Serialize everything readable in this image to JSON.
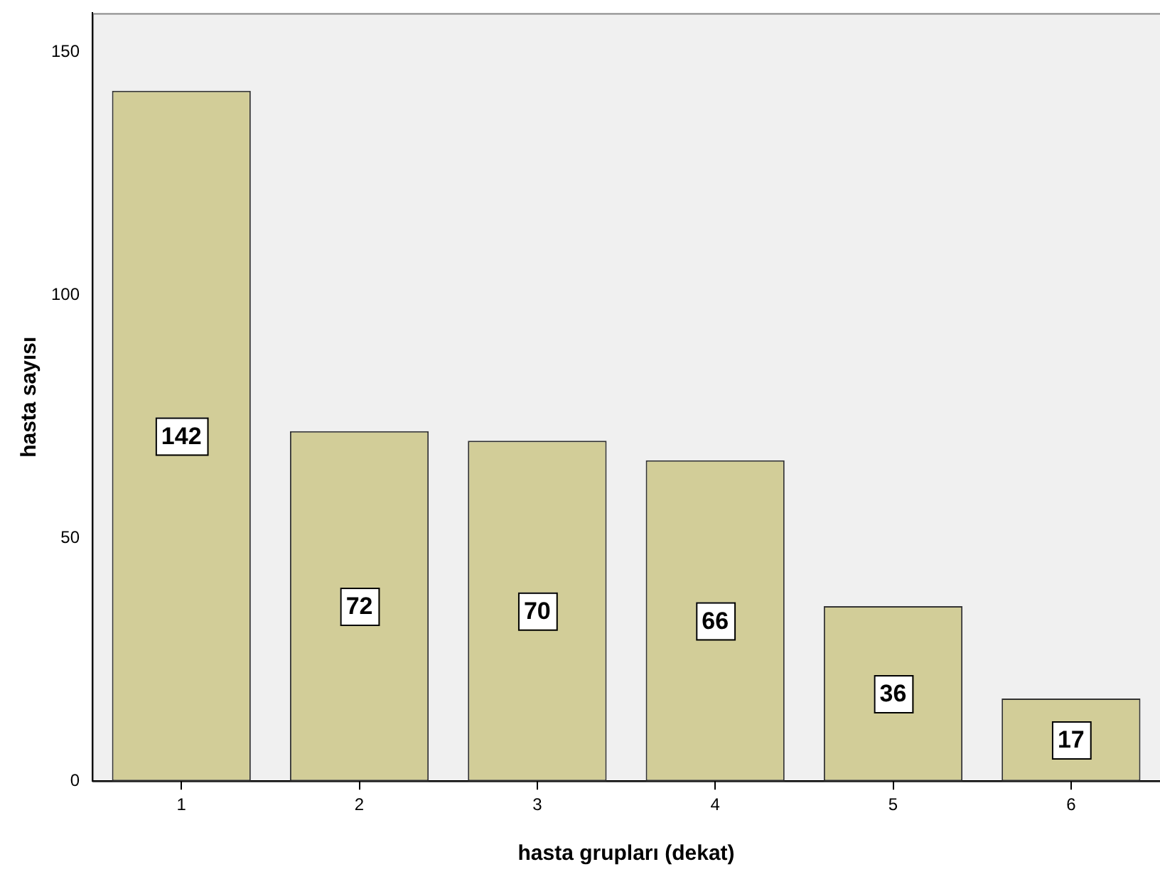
{
  "chart_data": {
    "type": "bar",
    "xlabel": "hasta grupları (dekat)",
    "ylabel": "hasta sayısı",
    "categories": [
      "1",
      "2",
      "3",
      "4",
      "5",
      "6"
    ],
    "values": [
      142,
      72,
      70,
      66,
      36,
      17
    ],
    "color": "#d2cd98",
    "ylim": [
      0,
      158
    ],
    "yticks": [
      0,
      50,
      100,
      150
    ],
    "grid": false,
    "legend": false,
    "data_labels": true
  }
}
